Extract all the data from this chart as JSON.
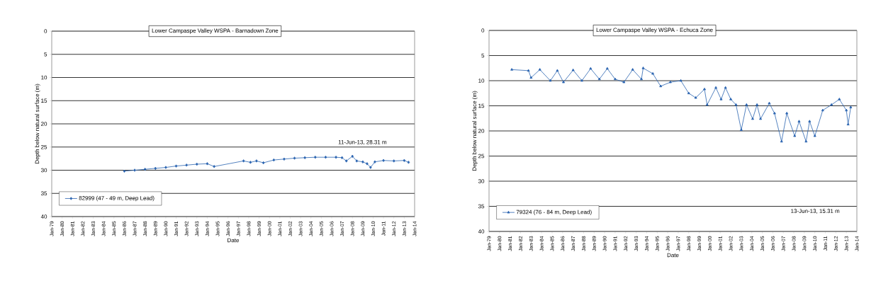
{
  "chart_data": [
    {
      "type": "line",
      "title": "Lower Campaspe Valley WSPA - Barnadown Zone",
      "xlabel": "Date",
      "ylabel": "Depth below natural surface (m)",
      "annotations": [
        "11-Jun-13, 28.31 m"
      ],
      "xlim": [
        "1979-01",
        "2014-01"
      ],
      "ylim": [
        40,
        0
      ],
      "yticks": [
        0,
        5,
        10,
        15,
        20,
        25,
        30,
        35,
        40
      ],
      "xticks": [
        {
          "value": "1979-01",
          "label": "Jan-79"
        },
        {
          "value": "1980-01",
          "label": "Jan-80"
        },
        {
          "value": "1981-01",
          "label": "Jan-81"
        },
        {
          "value": "1982-01",
          "label": "Jan-82"
        },
        {
          "value": "1983-01",
          "label": "Jan-83"
        },
        {
          "value": "1984-01",
          "label": "Jan-84"
        },
        {
          "value": "1985-01",
          "label": "Jan-85"
        },
        {
          "value": "1986-01",
          "label": "Jan-86"
        },
        {
          "value": "1987-01",
          "label": "Jan-87"
        },
        {
          "value": "1988-01",
          "label": "Jan-88"
        },
        {
          "value": "1989-01",
          "label": "Jan-89"
        },
        {
          "value": "1990-01",
          "label": "Jan-90"
        },
        {
          "value": "1991-01",
          "label": "Jan-91"
        },
        {
          "value": "1992-01",
          "label": "Jan-92"
        },
        {
          "value": "1993-01",
          "label": "Jan-93"
        },
        {
          "value": "1994-01",
          "label": "Jan-94"
        },
        {
          "value": "1995-01",
          "label": "Jan-95"
        },
        {
          "value": "1996-01",
          "label": "Jan-96"
        },
        {
          "value": "1997-01",
          "label": "Jan-97"
        },
        {
          "value": "1998-01",
          "label": "Jan-98"
        },
        {
          "value": "1999-01",
          "label": "Jan-99"
        },
        {
          "value": "2000-01",
          "label": "Jan-00"
        },
        {
          "value": "2001-01",
          "label": "Jan-01"
        },
        {
          "value": "2002-01",
          "label": "Jan-02"
        },
        {
          "value": "2003-01",
          "label": "Jan-03"
        },
        {
          "value": "2004-01",
          "label": "Jan-04"
        },
        {
          "value": "2005-01",
          "label": "Jan-05"
        },
        {
          "value": "2006-01",
          "label": "Jan-06"
        },
        {
          "value": "2007-01",
          "label": "Jan-07"
        },
        {
          "value": "2008-01",
          "label": "Jan-08"
        },
        {
          "value": "2009-01",
          "label": "Jan-09"
        },
        {
          "value": "2010-01",
          "label": "Jan-10"
        },
        {
          "value": "2011-01",
          "label": "Jan-11"
        },
        {
          "value": "2012-01",
          "label": "Jan-12"
        },
        {
          "value": "2013-01",
          "label": "Jan-13"
        },
        {
          "value": "2014-01",
          "label": "Jan-14"
        }
      ],
      "grid": "y",
      "legend": "bottom left",
      "line_style": "solid",
      "series": [
        {
          "name": "82999 (47 - 49 m, Deep Lead)",
          "color": "#2a63b0",
          "marker": "diamond",
          "x": [
            "1986-01",
            "1987-01",
            "1988-01",
            "1989-01",
            "1990-01",
            "1991-01",
            "1992-01",
            "1993-01",
            "1994-01",
            "1994-09",
            "1997-07",
            "1998-03",
            "1998-10",
            "1999-06",
            "2000-06",
            "2001-06",
            "2002-06",
            "2003-06",
            "2004-06",
            "2005-06",
            "2006-06",
            "2007-01",
            "2007-06",
            "2008-01",
            "2008-06",
            "2009-01",
            "2009-06",
            "2009-10",
            "2010-03",
            "2011-01",
            "2012-01",
            "2013-01",
            "2013-06"
          ],
          "values": [
            30.2,
            30.0,
            29.8,
            29.6,
            29.4,
            29.1,
            28.9,
            28.7,
            28.6,
            29.2,
            28.0,
            28.3,
            28.0,
            28.4,
            27.8,
            27.6,
            27.4,
            27.3,
            27.2,
            27.2,
            27.2,
            27.3,
            28.0,
            27.0,
            28.0,
            28.2,
            28.6,
            29.4,
            28.2,
            27.9,
            28.0,
            27.9,
            28.3
          ]
        }
      ]
    },
    {
      "type": "line",
      "title": "Lower Campaspe Valley WSPA - Echuca Zone",
      "xlabel": "Date",
      "ylabel": "Depth below natural surface (m)",
      "annotations": [
        "13-Jun-13, 15.31 m"
      ],
      "xlim": [
        "1979-01",
        "2014-01"
      ],
      "ylim": [
        40,
        0
      ],
      "yticks": [
        0,
        5,
        10,
        15,
        20,
        25,
        30,
        35,
        40
      ],
      "xticks": [
        {
          "value": "1979-01",
          "label": "Jan-79"
        },
        {
          "value": "1980-01",
          "label": "Jan-80"
        },
        {
          "value": "1981-01",
          "label": "Jan-81"
        },
        {
          "value": "1982-01",
          "label": "Jan-82"
        },
        {
          "value": "1983-01",
          "label": "Jan-83"
        },
        {
          "value": "1984-01",
          "label": "Jan-84"
        },
        {
          "value": "1985-01",
          "label": "Jan-85"
        },
        {
          "value": "1986-01",
          "label": "Jan-86"
        },
        {
          "value": "1987-01",
          "label": "Jan-87"
        },
        {
          "value": "1988-01",
          "label": "Jan-88"
        },
        {
          "value": "1989-01",
          "label": "Jan-89"
        },
        {
          "value": "1990-01",
          "label": "Jan-90"
        },
        {
          "value": "1991-01",
          "label": "Jan-91"
        },
        {
          "value": "1992-01",
          "label": "Jan-92"
        },
        {
          "value": "1993-01",
          "label": "Jan-93"
        },
        {
          "value": "1994-01",
          "label": "Jan-94"
        },
        {
          "value": "1995-01",
          "label": "Jan-95"
        },
        {
          "value": "1996-01",
          "label": "Jan-96"
        },
        {
          "value": "1997-01",
          "label": "Jan-97"
        },
        {
          "value": "1998-01",
          "label": "Jan-98"
        },
        {
          "value": "1999-01",
          "label": "Jan-99"
        },
        {
          "value": "2000-01",
          "label": "Jan-00"
        },
        {
          "value": "2001-01",
          "label": "Jan-01"
        },
        {
          "value": "2002-01",
          "label": "Jan-02"
        },
        {
          "value": "2003-01",
          "label": "Jan-03"
        },
        {
          "value": "2004-01",
          "label": "Jan-04"
        },
        {
          "value": "2005-01",
          "label": "Jan-05"
        },
        {
          "value": "2006-01",
          "label": "Jan-06"
        },
        {
          "value": "2007-01",
          "label": "Jan-07"
        },
        {
          "value": "2008-01",
          "label": "Jan-08"
        },
        {
          "value": "2009-01",
          "label": "Jan-09"
        },
        {
          "value": "2010-01",
          "label": "Jan-10"
        },
        {
          "value": "2011-01",
          "label": "Jan-11"
        },
        {
          "value": "2012-01",
          "label": "Jan-12"
        },
        {
          "value": "2013-01",
          "label": "Jan-13"
        },
        {
          "value": "2014-01",
          "label": "Jan-14"
        }
      ],
      "grid": "y",
      "legend": "bottom left",
      "line_style": "solid",
      "series": [
        {
          "name": "79324 (76 - 84 m, Deep Lead)",
          "color": "#2a63b0",
          "marker": "triangle",
          "x": [
            "1981-03",
            "1982-10",
            "1983-01",
            "1983-11",
            "1984-11",
            "1985-07",
            "1986-02",
            "1987-01",
            "1987-11",
            "1988-09",
            "1989-07",
            "1990-04",
            "1991-01",
            "1991-11",
            "1992-09",
            "1993-07",
            "1993-09",
            "1994-08",
            "1995-05",
            "1996-04",
            "1997-04",
            "1998-01",
            "1998-09",
            "1999-07",
            "1999-10",
            "2000-08",
            "2001-02",
            "2001-07",
            "2002-01",
            "2002-07",
            "2003-01",
            "2003-07",
            "2004-02",
            "2004-07",
            "2004-11",
            "2005-09",
            "2006-03",
            "2006-11",
            "2007-05",
            "2008-02",
            "2008-07",
            "2009-03",
            "2009-07",
            "2010-01",
            "2010-10",
            "2011-08",
            "2012-05",
            "2013-01",
            "2013-03",
            "2013-06"
          ],
          "values": [
            7.8,
            8.0,
            9.4,
            7.8,
            10.0,
            8.0,
            10.3,
            7.9,
            10.0,
            7.6,
            9.7,
            7.6,
            9.7,
            10.3,
            7.8,
            9.7,
            7.5,
            8.6,
            11.1,
            10.3,
            10.0,
            12.5,
            13.4,
            11.7,
            14.8,
            11.4,
            13.7,
            11.4,
            13.7,
            14.8,
            19.8,
            14.8,
            17.6,
            14.8,
            17.6,
            14.5,
            16.5,
            22.1,
            16.5,
            21.0,
            18.1,
            22.1,
            18.1,
            21.0,
            15.9,
            14.8,
            13.7,
            15.9,
            18.7,
            15.3
          ]
        }
      ]
    }
  ]
}
